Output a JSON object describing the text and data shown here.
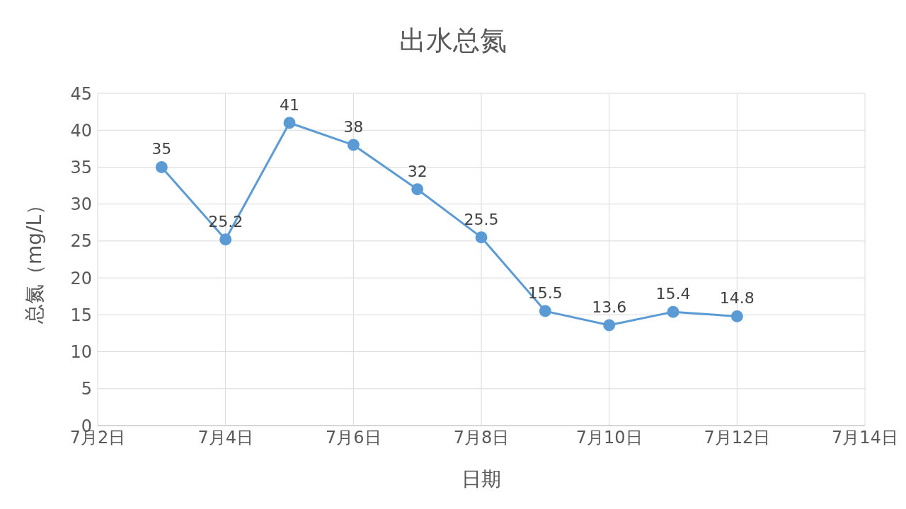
{
  "chart_data": {
    "type": "line",
    "title": "出水总氮",
    "xlabel": "日期",
    "ylabel": "总氮（mg/L）",
    "x": [
      "--07-03",
      "--07-04",
      "--07-05",
      "--07-06",
      "--07-07",
      "--07-08",
      "--07-09",
      "--07-10",
      "--07-11",
      "--07-12"
    ],
    "series": [
      {
        "color": "#5b9bd5",
        "values": [
          35,
          25.2,
          41,
          38,
          32,
          25.5,
          15.5,
          13.6,
          15.4,
          14.8
        ]
      }
    ],
    "xlim": [
      "--07-02",
      "--07-14"
    ],
    "xticks": [
      {
        "value": "--07-02",
        "label": "7月2日"
      },
      {
        "value": "--07-04",
        "label": "7月4日"
      },
      {
        "value": "--07-06",
        "label": "7月6日"
      },
      {
        "value": "--07-08",
        "label": "7月8日"
      },
      {
        "value": "--07-10",
        "label": "7月10日"
      },
      {
        "value": "--07-12",
        "label": "7月12日"
      },
      {
        "value": "--07-14",
        "label": "7月14日"
      }
    ],
    "ylim": [
      0,
      45
    ],
    "yticks": [
      0,
      5,
      10,
      15,
      20,
      25,
      30,
      35,
      40,
      45
    ],
    "grid": true,
    "marker": "circle",
    "line_style": "solid",
    "data_labels": true,
    "legend": false
  }
}
